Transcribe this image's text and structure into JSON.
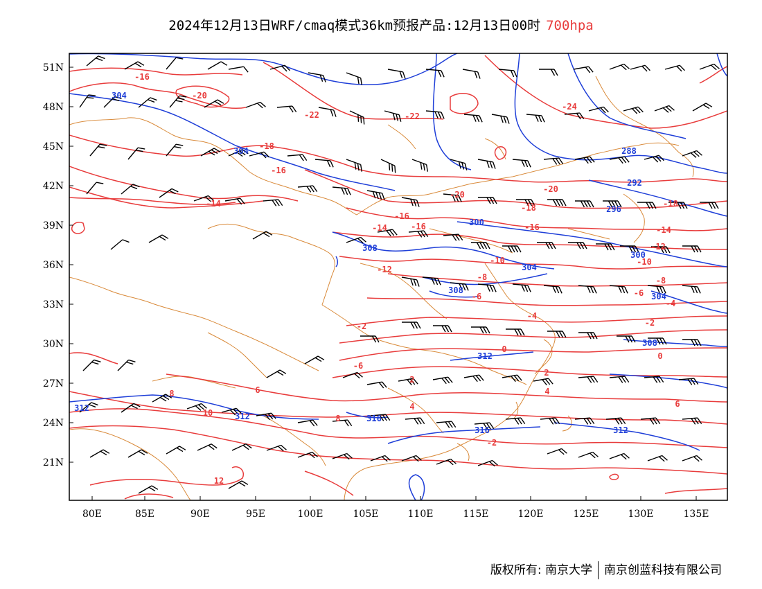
{
  "title": {
    "main": "2024年12月13日WRF/cmaq模式36km预报产品:12月13日00时",
    "level": "700hpa"
  },
  "axes": {
    "x_ticks": [
      "80E",
      "85E",
      "90E",
      "95E",
      "100E",
      "105E",
      "110E",
      "115E",
      "120E",
      "125E",
      "130E",
      "135E"
    ],
    "y_ticks": [
      "51N",
      "48N",
      "45N",
      "42N",
      "39N",
      "36N",
      "33N",
      "30N",
      "27N",
      "24N",
      "21N"
    ]
  },
  "colors": {
    "temperature": "#e83c3c",
    "geopotential": "#1f3fd8",
    "boundary": "#d98a3a",
    "wind": "#000000"
  },
  "temperature_labels": [
    "-16",
    "-20",
    "-22",
    "-22",
    "-24",
    "-18",
    "-16",
    "-14",
    "-20",
    "-20",
    "-18",
    "-18",
    "-14",
    "-16",
    "-16",
    "-16",
    "-14",
    "-12",
    "-12",
    "-10",
    "-10",
    "-8",
    "-8",
    "-6",
    "-6",
    "-4",
    "-4",
    "-2",
    "-2",
    "0",
    "0",
    "2",
    "2",
    "4",
    "4",
    "-6",
    "6",
    "6",
    "8",
    "8",
    "10",
    "12",
    "-2"
  ],
  "height_labels": [
    "304",
    "304",
    "288",
    "292",
    "296",
    "300",
    "300",
    "308",
    "304",
    "308",
    "304",
    "308",
    "312",
    "312",
    "312",
    "316",
    "316",
    "312"
  ],
  "footer": {
    "left": "版权所有: 南京大学",
    "right": "南京创蓝科技有限公司"
  }
}
